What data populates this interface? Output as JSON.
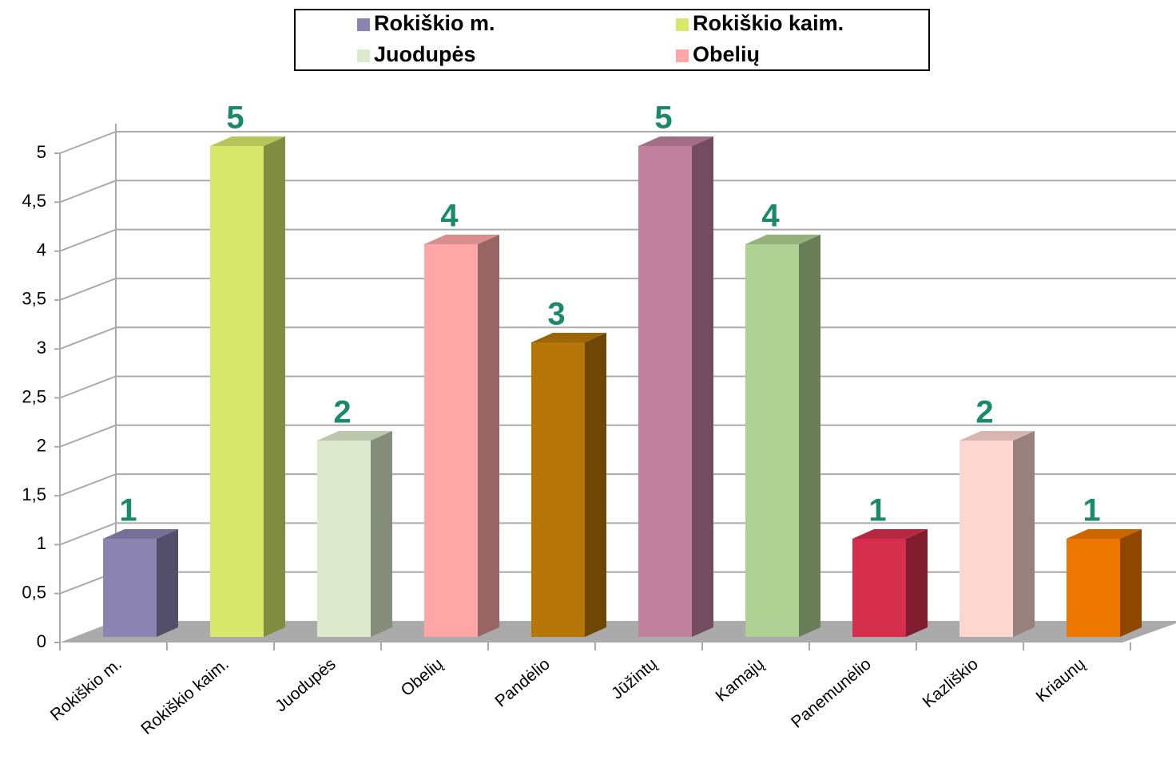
{
  "chart_data": {
    "type": "bar",
    "categories": [
      "Rokiškio m.",
      "Rokiškio kaim.",
      "Juodupės",
      "Obelių",
      "Pandėlio",
      "Jūžintų",
      "Kamajų",
      "Panemunėlio",
      "Kazliškio",
      "Kriaunų"
    ],
    "values": [
      1,
      5,
      2,
      4,
      3,
      5,
      4,
      1,
      2,
      1
    ],
    "colors": [
      "#8b84b0",
      "#d6e96a",
      "#dce9cc",
      "#ffa6a6",
      "#b77708",
      "#c0809e",
      "#aed092",
      "#d62e4d",
      "#fdd6d0",
      "#ee7700"
    ],
    "legend": [
      {
        "name": "Rokiškio m.",
        "color": "#8b84b0"
      },
      {
        "name": "Rokiškio kaim.",
        "color": "#d6e96a"
      },
      {
        "name": "Juodupės",
        "color": "#dce9cc"
      },
      {
        "name": "Obelių",
        "color": "#ffa6a6"
      }
    ],
    "ylim": [
      0,
      5
    ],
    "yticks": [
      0,
      {
        "value": 0.5,
        "label": "0,5"
      },
      1,
      {
        "value": 1.5,
        "label": "1,5"
      },
      2,
      {
        "value": 2.5,
        "label": "2,5"
      },
      3,
      {
        "value": 3.5,
        "label": "3,5"
      },
      4,
      {
        "value": 4.5,
        "label": "4,5"
      },
      5
    ],
    "grid": true
  }
}
